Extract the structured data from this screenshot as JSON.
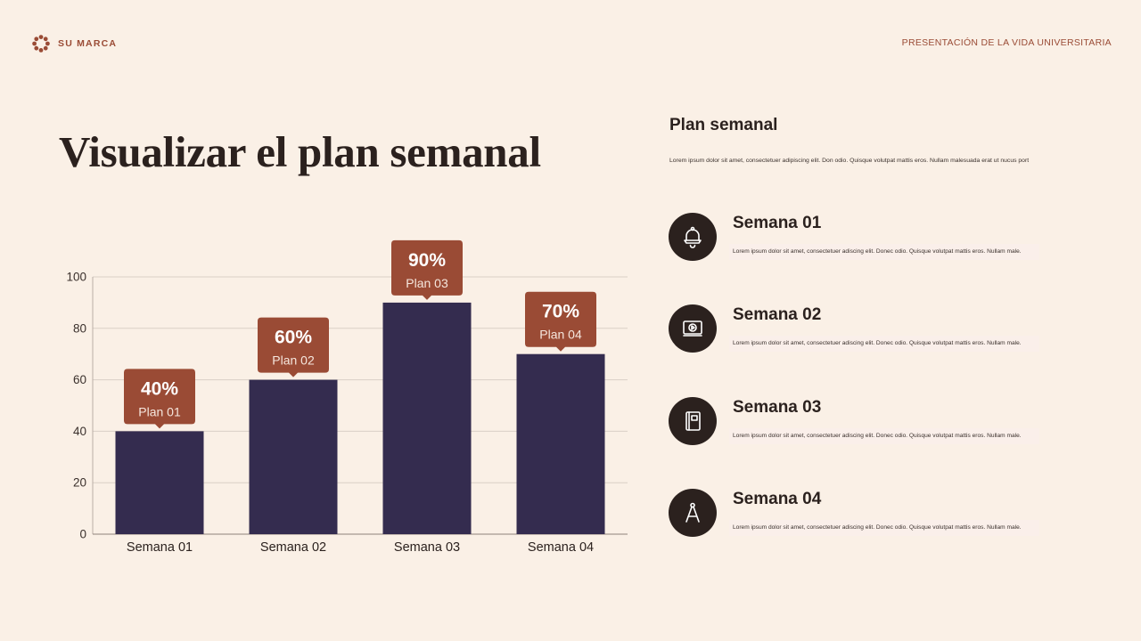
{
  "brand": {
    "name": "SU MARCA",
    "logo_icon": "flower-ring-icon"
  },
  "header": {
    "right_text": "PRESENTACIÓN DE LA VIDA UNIVERSITARIA"
  },
  "title": "Visualizar el plan semanal",
  "colors": {
    "background": "#faf0e6",
    "bar": "#342c4f",
    "callout": "#9a4b35",
    "text": "#2b211e",
    "grid": "#d9cfc6"
  },
  "side": {
    "title": "Plan semanal",
    "description": "Lorem ipsum dolor sit amet, consectetuer adipiscing elit. Don odio. Quisque volutpat mattis eros. Nullam malesuada erat ut nucus port",
    "weeks": [
      {
        "label": "Semana 01",
        "text": "Lorem ipsum dolor sit amet, consectetuer adiscing elit. Donec odio. Quisque volutpat mattis eros. Nullam male.",
        "icon": "bell-icon"
      },
      {
        "label": "Semana 02",
        "text": "Lorem ipsum dolor sit amet, consectetuer adiscing elit. Donec odio. Quisque volutpat mattis eros. Nullam male.",
        "icon": "video-player-icon"
      },
      {
        "label": "Semana 03",
        "text": "Lorem ipsum dolor sit amet, consectetuer adiscing elit. Donec odio. Quisque volutpat mattis eros. Nullam male.",
        "icon": "notebook-icon"
      },
      {
        "label": "Semana 04",
        "text": "Lorem ipsum dolor sit amet, consectetuer adiscing elit. Donec odio. Quisque volutpat mattis eros. Nullam male.",
        "icon": "compass-icon"
      }
    ]
  },
  "chart_data": {
    "type": "bar",
    "categories": [
      "Semana 01",
      "Semana 02",
      "Semana 03",
      "Semana 04"
    ],
    "values": [
      40,
      60,
      90,
      70
    ],
    "ylim": [
      0,
      100
    ],
    "yticks": [
      0,
      20,
      40,
      60,
      80,
      100
    ],
    "grid": true,
    "annotations": [
      {
        "value_label": "40%",
        "plan_label": "Plan 01"
      },
      {
        "value_label": "60%",
        "plan_label": "Plan 02"
      },
      {
        "value_label": "90%",
        "plan_label": "Plan 03"
      },
      {
        "value_label": "70%",
        "plan_label": "Plan 04"
      }
    ]
  }
}
